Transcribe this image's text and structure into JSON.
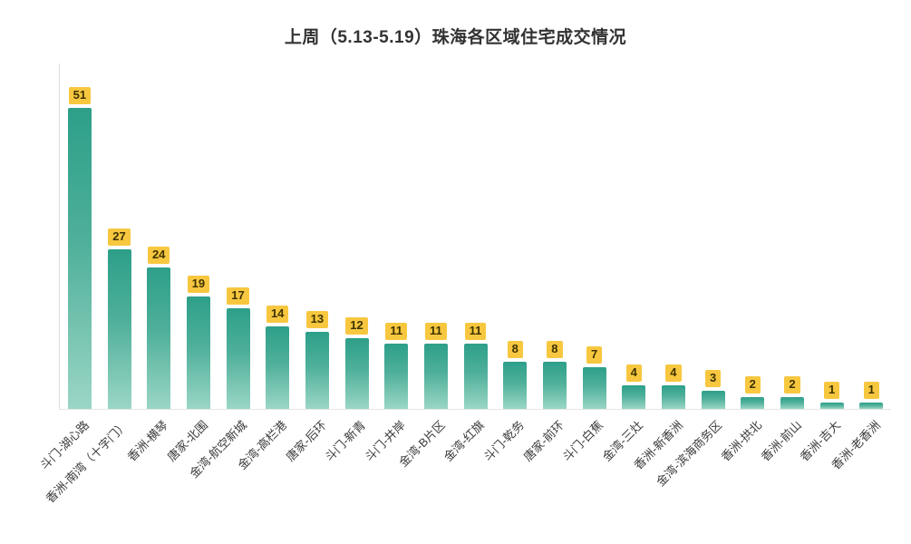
{
  "chart": {
    "title": "上周（5.13-5.19）珠海各区域住宅成交情况"
  },
  "chart_data": {
    "type": "bar",
    "title": "上周（5.13-5.19）珠海各区域住宅成交情况",
    "categories": [
      "斗门-湖心路",
      "香洲-南湾（十字门）",
      "香洲-横琴",
      "唐家-北围",
      "金湾-航空新城",
      "金湾-高栏港",
      "唐家-后环",
      "斗门-新青",
      "斗门-井岸",
      "金湾-B片区",
      "金湾-红旗",
      "斗门-乾务",
      "唐家-前环",
      "斗门-白蕉",
      "金湾-三灶",
      "香洲-新香洲",
      "金湾-滨海商务区",
      "香洲-拱北",
      "香洲-前山",
      "香洲-吉大",
      "香洲-老香洲"
    ],
    "values": [
      51,
      27,
      24,
      19,
      17,
      14,
      13,
      12,
      11,
      11,
      11,
      8,
      8,
      7,
      4,
      4,
      3,
      2,
      2,
      1,
      1
    ],
    "xlabel": "",
    "ylabel": "",
    "ylim": [
      0,
      55
    ],
    "grid": false,
    "legend": "none",
    "bar_color_top": "#2d9f89",
    "bar_color_bottom": "#9bd6c6",
    "value_label_bg": "#f7c73f",
    "value_label_color": "#3d3200"
  }
}
